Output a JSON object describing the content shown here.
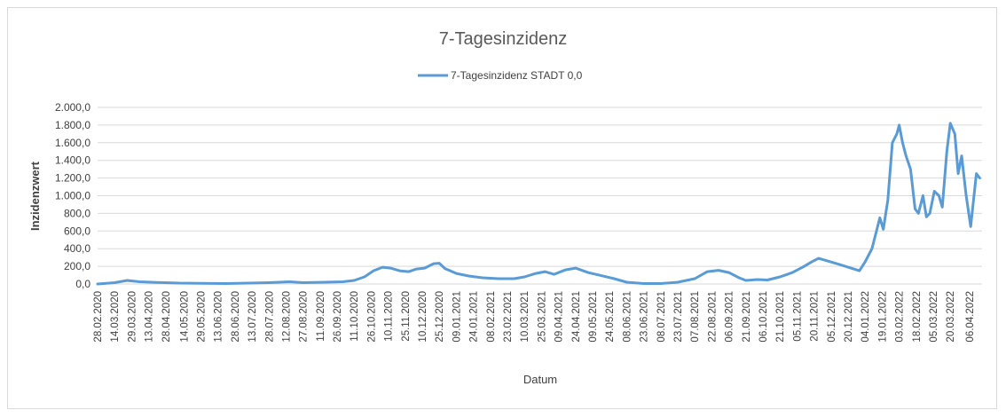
{
  "chart_data": {
    "type": "line",
    "title": "7-Tagesinzidenz",
    "xlabel": "Datum",
    "ylabel": "Inzidenzwert",
    "ylim": [
      0,
      2000
    ],
    "yticks": [
      "0,0",
      "200,0",
      "400,0",
      "600,0",
      "800,0",
      "1.000,0",
      "1.200,0",
      "1.400,0",
      "1.600,0",
      "1.800,0",
      "2.000,0"
    ],
    "yticks_values": [
      0,
      200,
      400,
      600,
      800,
      1000,
      1200,
      1400,
      1600,
      1800,
      2000
    ],
    "xlim": [
      "2020-02-28",
      "2022-04-17"
    ],
    "xticks": [
      "28.02.2020",
      "14.03.2020",
      "29.03.2020",
      "13.04.2020",
      "28.04.2020",
      "14.05.2020",
      "29.05.2020",
      "13.06.2020",
      "28.06.2020",
      "13.07.2020",
      "28.07.2020",
      "12.08.2020",
      "27.08.2020",
      "11.09.2020",
      "26.09.2020",
      "11.10.2020",
      "26.10.2020",
      "10.11.2020",
      "25.11.2020",
      "10.12.2020",
      "25.12.2020",
      "09.01.2021",
      "24.01.2021",
      "08.02.2021",
      "23.02.2021",
      "10.03.2021",
      "25.03.2021",
      "09.04.2021",
      "24.04.2021",
      "09.05.2021",
      "24.05.2021",
      "08.06.2021",
      "23.06.2021",
      "08.07.2021",
      "23.07.2021",
      "07.08.2021",
      "22.08.2021",
      "06.09.2021",
      "21.09.2021",
      "06.10.2021",
      "21.10.2021",
      "05.11.2021",
      "20.11.2021",
      "05.12.2021",
      "20.12.2021",
      "04.01.2022",
      "19.01.2022",
      "03.02.2022",
      "18.02.2022",
      "05.03.2022",
      "20.03.2022",
      "06.04.2022"
    ],
    "grid": true,
    "legend_position": "top",
    "series": [
      {
        "name": "7-Tagesinzidenz STADT 0,0",
        "color": "#5b9bd5",
        "points": [
          [
            "2020-02-28",
            0
          ],
          [
            "2020-03-14",
            15
          ],
          [
            "2020-03-25",
            40
          ],
          [
            "2020-04-05",
            25
          ],
          [
            "2020-04-20",
            18
          ],
          [
            "2020-05-10",
            10
          ],
          [
            "2020-05-30",
            8
          ],
          [
            "2020-06-20",
            5
          ],
          [
            "2020-07-10",
            10
          ],
          [
            "2020-07-28",
            15
          ],
          [
            "2020-08-15",
            25
          ],
          [
            "2020-08-27",
            15
          ],
          [
            "2020-09-15",
            20
          ],
          [
            "2020-10-01",
            25
          ],
          [
            "2020-10-11",
            40
          ],
          [
            "2020-10-20",
            80
          ],
          [
            "2020-10-28",
            150
          ],
          [
            "2020-11-05",
            190
          ],
          [
            "2020-11-12",
            180
          ],
          [
            "2020-11-20",
            150
          ],
          [
            "2020-11-28",
            140
          ],
          [
            "2020-12-05",
            170
          ],
          [
            "2020-12-12",
            180
          ],
          [
            "2020-12-20",
            230
          ],
          [
            "2020-12-25",
            235
          ],
          [
            "2020-12-30",
            175
          ],
          [
            "2021-01-09",
            120
          ],
          [
            "2021-01-20",
            90
          ],
          [
            "2021-02-01",
            70
          ],
          [
            "2021-02-15",
            60
          ],
          [
            "2021-03-01",
            60
          ],
          [
            "2021-03-10",
            80
          ],
          [
            "2021-03-20",
            120
          ],
          [
            "2021-03-28",
            140
          ],
          [
            "2021-04-05",
            110
          ],
          [
            "2021-04-15",
            160
          ],
          [
            "2021-04-24",
            180
          ],
          [
            "2021-05-05",
            130
          ],
          [
            "2021-05-15",
            100
          ],
          [
            "2021-05-28",
            60
          ],
          [
            "2021-06-08",
            20
          ],
          [
            "2021-06-23",
            5
          ],
          [
            "2021-07-08",
            5
          ],
          [
            "2021-07-23",
            20
          ],
          [
            "2021-08-07",
            60
          ],
          [
            "2021-08-18",
            140
          ],
          [
            "2021-08-28",
            155
          ],
          [
            "2021-09-06",
            130
          ],
          [
            "2021-09-15",
            70
          ],
          [
            "2021-09-21",
            40
          ],
          [
            "2021-10-01",
            50
          ],
          [
            "2021-10-10",
            45
          ],
          [
            "2021-10-21",
            80
          ],
          [
            "2021-11-01",
            130
          ],
          [
            "2021-11-10",
            190
          ],
          [
            "2021-11-18",
            250
          ],
          [
            "2021-11-24",
            290
          ],
          [
            "2021-12-02",
            260
          ],
          [
            "2021-12-10",
            230
          ],
          [
            "2021-12-20",
            190
          ],
          [
            "2021-12-30",
            150
          ],
          [
            "2022-01-04",
            250
          ],
          [
            "2022-01-10",
            400
          ],
          [
            "2022-01-14",
            600
          ],
          [
            "2022-01-17",
            750
          ],
          [
            "2022-01-20",
            620
          ],
          [
            "2022-01-24",
            950
          ],
          [
            "2022-01-28",
            1600
          ],
          [
            "2022-02-01",
            1700
          ],
          [
            "2022-02-03",
            1800
          ],
          [
            "2022-02-06",
            1600
          ],
          [
            "2022-02-09",
            1450
          ],
          [
            "2022-02-13",
            1300
          ],
          [
            "2022-02-17",
            850
          ],
          [
            "2022-02-20",
            800
          ],
          [
            "2022-02-24",
            1000
          ],
          [
            "2022-02-27",
            760
          ],
          [
            "2022-03-02",
            800
          ],
          [
            "2022-03-06",
            1050
          ],
          [
            "2022-03-10",
            1000
          ],
          [
            "2022-03-13",
            870
          ],
          [
            "2022-03-17",
            1500
          ],
          [
            "2022-03-20",
            1820
          ],
          [
            "2022-03-24",
            1700
          ],
          [
            "2022-03-27",
            1250
          ],
          [
            "2022-03-30",
            1450
          ],
          [
            "2022-04-03",
            1000
          ],
          [
            "2022-04-07",
            650
          ],
          [
            "2022-04-12",
            1250
          ],
          [
            "2022-04-15",
            1200
          ]
        ]
      }
    ]
  }
}
